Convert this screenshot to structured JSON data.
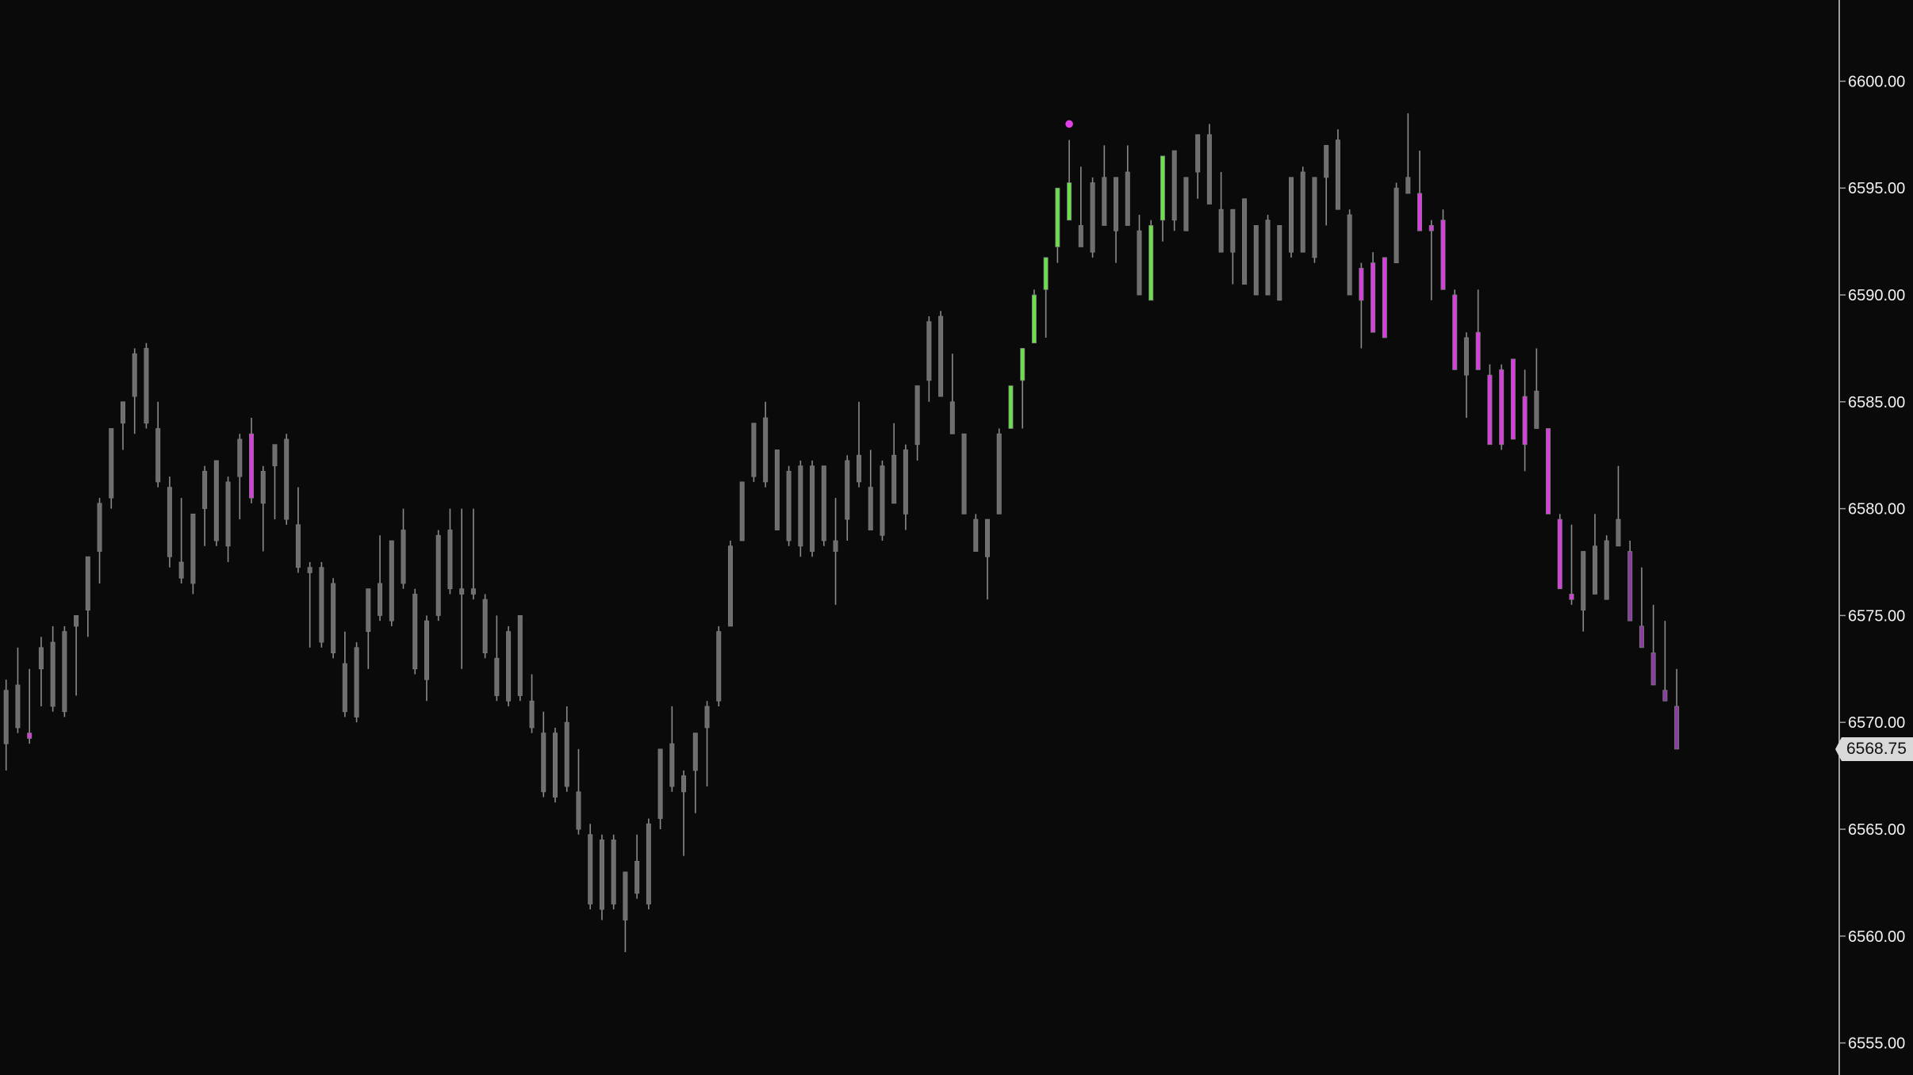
{
  "chart_data": {
    "type": "candlestick",
    "title": "",
    "xlabel": "",
    "ylabel": "",
    "ylim": [
      6553.5,
      6603.8
    ],
    "y_ticks": [
      "6555.00",
      "6560.00",
      "6565.00",
      "6570.00",
      "6575.00",
      "6580.00",
      "6585.00",
      "6590.00",
      "6595.00",
      "6600.00"
    ],
    "y_axis_position": "right",
    "grid": false,
    "last_price": "6568.75",
    "colors": {
      "background": "#0a0a0a",
      "n": "#6e6e6e",
      "g": "#6be04a",
      "m": "#d63fdc",
      "p": "#8a3fa0",
      "wick": "#8a8a8a",
      "axis": "#d0d0d0",
      "marker": "#e040e8",
      "price_tag": "#d9d9d9"
    },
    "candle_fields": [
      "open",
      "high",
      "low",
      "close",
      "color"
    ],
    "candles": [
      [
        6569,
        6572,
        6567.75,
        6571.5,
        "n"
      ],
      [
        6569.75,
        6573.5,
        6569.5,
        6571.75,
        "n"
      ],
      [
        6569.5,
        6572.5,
        6569,
        6569.25,
        "m"
      ],
      [
        6572.5,
        6574,
        6570.75,
        6573.5,
        "n"
      ],
      [
        6573.75,
        6574.5,
        6570.5,
        6570.75,
        "n"
      ],
      [
        6570.5,
        6574.5,
        6570.25,
        6574.25,
        "n"
      ],
      [
        6574.5,
        6575,
        6571.25,
        6575,
        "n"
      ],
      [
        6575.25,
        6577.75,
        6574,
        6577.75,
        "n"
      ],
      [
        6578,
        6580.5,
        6576.5,
        6580.25,
        "n"
      ],
      [
        6580.5,
        6583.75,
        6580,
        6583.75,
        "n"
      ],
      [
        6584,
        6585,
        6582.75,
        6585,
        "n"
      ],
      [
        6585.25,
        6587.5,
        6583.5,
        6587.25,
        "n"
      ],
      [
        6587.5,
        6587.75,
        6583.75,
        6584,
        "n"
      ],
      [
        6583.75,
        6585,
        6581,
        6581.25,
        "n"
      ],
      [
        6581,
        6581.5,
        6577.25,
        6577.75,
        "n"
      ],
      [
        6577.5,
        6580.5,
        6576.5,
        6576.75,
        "n"
      ],
      [
        6576.5,
        6579.75,
        6576,
        6579.75,
        "n"
      ],
      [
        6580,
        6582,
        6578.25,
        6581.75,
        "n"
      ],
      [
        6582.25,
        6582.25,
        6578.25,
        6578.5,
        "n"
      ],
      [
        6578.25,
        6581.5,
        6577.5,
        6581.25,
        "n"
      ],
      [
        6581.5,
        6583.5,
        6579.5,
        6583.25,
        "n"
      ],
      [
        6583.5,
        6584.25,
        6580.25,
        6580.5,
        "m"
      ],
      [
        6580.25,
        6582,
        6578,
        6581.75,
        "n"
      ],
      [
        6582,
        6583,
        6579.5,
        6583,
        "n"
      ],
      [
        6583.25,
        6583.5,
        6579.25,
        6579.5,
        "n"
      ],
      [
        6579.25,
        6581,
        6577,
        6577.25,
        "n"
      ],
      [
        6577.25,
        6577.5,
        6573.5,
        6577,
        "n"
      ],
      [
        6577.25,
        6577.5,
        6573.5,
        6573.75,
        "n"
      ],
      [
        6576.5,
        6576.75,
        6573,
        6573.25,
        "n"
      ],
      [
        6572.75,
        6574.25,
        6570.25,
        6570.5,
        "n"
      ],
      [
        6570.25,
        6573.75,
        6570,
        6573.5,
        "n"
      ],
      [
        6574.25,
        6576.25,
        6572.5,
        6576.25,
        "n"
      ],
      [
        6575,
        6578.75,
        6574.75,
        6576.5,
        "n"
      ],
      [
        6574.75,
        6578.5,
        6574.5,
        6578.5,
        "n"
      ],
      [
        6576.5,
        6580,
        6576.25,
        6579,
        "n"
      ],
      [
        6576,
        6576.25,
        6572.25,
        6572.5,
        "n"
      ],
      [
        6574.75,
        6575,
        6571,
        6572,
        "n"
      ],
      [
        6575,
        6579,
        6574.75,
        6578.75,
        "n"
      ],
      [
        6576.25,
        6580,
        6576,
        6579,
        "n"
      ],
      [
        6576.25,
        6580,
        6572.5,
        6576,
        "n"
      ],
      [
        6576,
        6580,
        6575.75,
        6576.25,
        "n"
      ],
      [
        6575.75,
        6576,
        6573,
        6573.25,
        "n"
      ],
      [
        6573,
        6575,
        6571,
        6571.25,
        "n"
      ],
      [
        6571,
        6574.5,
        6570.75,
        6574.25,
        "n"
      ],
      [
        6575,
        6575,
        6571,
        6571.25,
        "n"
      ],
      [
        6571,
        6572.25,
        6569.5,
        6569.75,
        "n"
      ],
      [
        6569.5,
        6570.5,
        6566.5,
        6566.75,
        "n"
      ],
      [
        6569.5,
        6569.75,
        6566.25,
        6566.5,
        "n"
      ],
      [
        6567,
        6570.75,
        6566.75,
        6570,
        "n"
      ],
      [
        6566.75,
        6568.75,
        6564.75,
        6565,
        "n"
      ],
      [
        6564.75,
        6565.25,
        6561.25,
        6561.5,
        "n"
      ],
      [
        6564.5,
        6564.75,
        6560.75,
        6561.25,
        "n"
      ],
      [
        6561.5,
        6564.75,
        6561.25,
        6564.5,
        "n"
      ],
      [
        6563,
        6563,
        6559.25,
        6560.75,
        "n"
      ],
      [
        6562,
        6564.75,
        6561.75,
        6563.5,
        "n"
      ],
      [
        6561.5,
        6565.5,
        6561.25,
        6565.25,
        "n"
      ],
      [
        6565.5,
        6568.75,
        6565,
        6568.75,
        "n"
      ],
      [
        6567,
        6570.75,
        6566.75,
        6569,
        "n"
      ],
      [
        6567.5,
        6567.75,
        6563.75,
        6566.75,
        "n"
      ],
      [
        6567.75,
        6569.5,
        6565.75,
        6569.5,
        "n"
      ],
      [
        6569.75,
        6571,
        6567,
        6570.75,
        "n"
      ],
      [
        6571,
        6574.5,
        6570.75,
        6574.25,
        "n"
      ],
      [
        6574.5,
        6578.5,
        6574.5,
        6578.25,
        "n"
      ],
      [
        6578.5,
        6581.25,
        6578.5,
        6581.25,
        "n"
      ],
      [
        6581.5,
        6584,
        6581.25,
        6584,
        "n"
      ],
      [
        6584.25,
        6585,
        6581,
        6581.25,
        "n"
      ],
      [
        6582.75,
        6582.75,
        6579,
        6579,
        "n"
      ],
      [
        6578.5,
        6582,
        6578.25,
        6581.75,
        "n"
      ],
      [
        6582,
        6582.25,
        6577.75,
        6578.25,
        "n"
      ],
      [
        6578,
        6582.25,
        6577.75,
        6582,
        "n"
      ],
      [
        6582,
        6582,
        6578.25,
        6578.5,
        "n"
      ],
      [
        6578.5,
        6580.5,
        6575.5,
        6578,
        "n"
      ],
      [
        6579.5,
        6582.5,
        6578.5,
        6582.25,
        "n"
      ],
      [
        6581.25,
        6585,
        6581,
        6582.5,
        "n"
      ],
      [
        6581,
        6582.75,
        6579,
        6579,
        "n"
      ],
      [
        6578.75,
        6582.25,
        6578.5,
        6582,
        "n"
      ],
      [
        6582.5,
        6584,
        6580.25,
        6580.25,
        "n"
      ],
      [
        6579.75,
        6583,
        6579,
        6582.75,
        "n"
      ],
      [
        6583,
        6585.75,
        6582.25,
        6585.75,
        "n"
      ],
      [
        6586,
        6589,
        6585,
        6588.75,
        "n"
      ],
      [
        6589,
        6589.25,
        6585.25,
        6585.25,
        "n"
      ],
      [
        6585,
        6587.25,
        6583.5,
        6583.5,
        "n"
      ],
      [
        6583.5,
        6583.5,
        6579.75,
        6579.75,
        "n"
      ],
      [
        6579.5,
        6579.75,
        6578,
        6578,
        "n"
      ],
      [
        6577.75,
        6579.5,
        6575.75,
        6579.5,
        "n"
      ],
      [
        6579.75,
        6583.75,
        6579.75,
        6583.5,
        "n"
      ],
      [
        6583.75,
        6585.75,
        6583.75,
        6585.75,
        "g"
      ],
      [
        6586,
        6587.5,
        6583.75,
        6587.5,
        "g"
      ],
      [
        6587.75,
        6590.25,
        6587.75,
        6590,
        "g"
      ],
      [
        6590.25,
        6591.75,
        6588,
        6591.75,
        "g"
      ],
      [
        6592.25,
        6595,
        6591.5,
        6595,
        "g"
      ],
      [
        6593.5,
        6597.25,
        6593.5,
        6595.25,
        "g"
      ],
      [
        6593.25,
        6596,
        6592.25,
        6592.25,
        "n"
      ],
      [
        6592,
        6595.5,
        6591.75,
        6595.25,
        "n"
      ],
      [
        6595.5,
        6597,
        6593.25,
        6593.25,
        "n"
      ],
      [
        6593,
        6595.5,
        6591.5,
        6595.5,
        "n"
      ],
      [
        6595.75,
        6597,
        6593.25,
        6593.25,
        "n"
      ],
      [
        6593,
        6593.75,
        6590,
        6590,
        "n"
      ],
      [
        6589.75,
        6593.5,
        6589.75,
        6593.25,
        "g"
      ],
      [
        6593.5,
        6596.5,
        6592.5,
        6596.5,
        "g"
      ],
      [
        6596.75,
        6596.75,
        6593,
        6593.5,
        "n"
      ],
      [
        6593,
        6595.5,
        6593,
        6595.5,
        "n"
      ],
      [
        6595.75,
        6597.5,
        6594.5,
        6597.5,
        "n"
      ],
      [
        6597.5,
        6598,
        6594.25,
        6594.25,
        "n"
      ],
      [
        6594,
        6595.75,
        6592,
        6592,
        "n"
      ],
      [
        6592,
        6594,
        6590.5,
        6594,
        "n"
      ],
      [
        6594.5,
        6594.5,
        6590.5,
        6590.5,
        "n"
      ],
      [
        6590,
        6593.25,
        6590,
        6593.25,
        "n"
      ],
      [
        6593.5,
        6593.75,
        6590,
        6590,
        "n"
      ],
      [
        6589.75,
        6593.25,
        6589.75,
        6593.25,
        "n"
      ],
      [
        6592,
        6595.5,
        6591.75,
        6595.5,
        "n"
      ],
      [
        6595.75,
        6596,
        6592,
        6592,
        "n"
      ],
      [
        6591.75,
        6595.5,
        6591.5,
        6595.5,
        "n"
      ],
      [
        6595.5,
        6597,
        6593.25,
        6597,
        "n"
      ],
      [
        6597.25,
        6597.75,
        6594,
        6594,
        "n"
      ],
      [
        6593.75,
        6594,
        6590,
        6590,
        "n"
      ],
      [
        6591.25,
        6591.5,
        6587.5,
        6589.75,
        "m"
      ],
      [
        6591.5,
        6592,
        6588.25,
        6588.25,
        "m"
      ],
      [
        6591.75,
        6591.75,
        6588,
        6588,
        "m"
      ],
      [
        6591.5,
        6595.25,
        6591.5,
        6595,
        "n"
      ],
      [
        6594.75,
        6598.5,
        6594.75,
        6595.5,
        "n"
      ],
      [
        6594.75,
        6596.75,
        6593,
        6593,
        "m"
      ],
      [
        6593.25,
        6593.5,
        6589.75,
        6593,
        "m"
      ],
      [
        6593.5,
        6594,
        6590.25,
        6590.25,
        "m"
      ],
      [
        6590,
        6590.25,
        6586.5,
        6586.5,
        "m"
      ],
      [
        6586.25,
        6588.25,
        6584.25,
        6588,
        "n"
      ],
      [
        6588.25,
        6590.25,
        6586.5,
        6586.5,
        "m"
      ],
      [
        6586.25,
        6586.75,
        6583,
        6583,
        "m"
      ],
      [
        6586.5,
        6586.75,
        6582.75,
        6583,
        "m"
      ],
      [
        6587,
        6587,
        6583.25,
        6583.25,
        "m"
      ],
      [
        6585.25,
        6586.5,
        6581.75,
        6583,
        "m"
      ],
      [
        6583.75,
        6587.5,
        6583.75,
        6585.5,
        "n"
      ],
      [
        6583.75,
        6583.75,
        6579.75,
        6579.75,
        "m"
      ],
      [
        6579.5,
        6579.75,
        6576.25,
        6576.25,
        "m"
      ],
      [
        6576,
        6579.25,
        6575.5,
        6575.75,
        "m"
      ],
      [
        6575.25,
        6578,
        6574.25,
        6578,
        "n"
      ],
      [
        6578.25,
        6579.75,
        6576,
        6576,
        "n"
      ],
      [
        6575.75,
        6578.75,
        6575.75,
        6578.5,
        "n"
      ],
      [
        6578.25,
        6582,
        6578.25,
        6579.5,
        "n"
      ],
      [
        6578,
        6578.5,
        6574.75,
        6574.75,
        "p"
      ],
      [
        6574.5,
        6577.25,
        6573.5,
        6573.5,
        "p"
      ],
      [
        6573.25,
        6575.5,
        6571.75,
        6571.75,
        "p"
      ],
      [
        6571.5,
        6574.75,
        6571,
        6571,
        "p"
      ],
      [
        6570.75,
        6572.5,
        6568.75,
        6568.75,
        "p"
      ]
    ],
    "markers": [
      {
        "candle_index": 91,
        "price": 6598.0,
        "shape": "dot",
        "color": "marker"
      }
    ]
  }
}
